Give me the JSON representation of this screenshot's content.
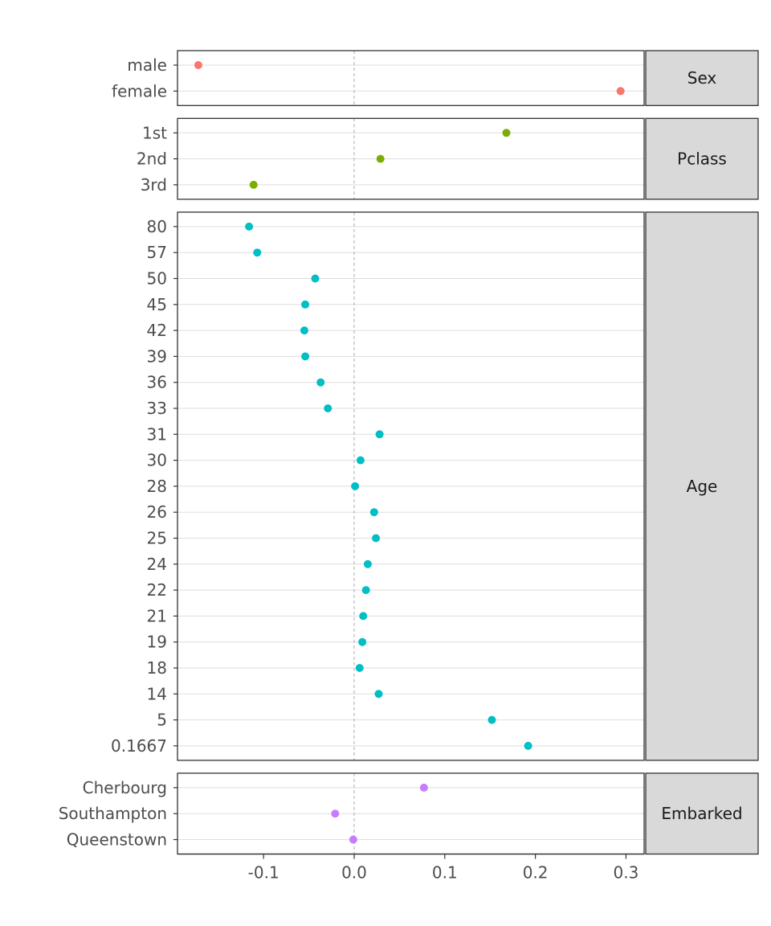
{
  "chart_data": {
    "type": "scatter",
    "title": "",
    "xlabel": "",
    "ylabel": "",
    "xlim": [
      -0.195,
      0.32
    ],
    "x_ticks": [
      {
        "value": -0.1,
        "label": "-0.1"
      },
      {
        "value": 0.0,
        "label": "0.0"
      },
      {
        "value": 0.1,
        "label": "0.1"
      },
      {
        "value": 0.2,
        "label": "0.2"
      },
      {
        "value": 0.3,
        "label": "0.3"
      }
    ],
    "reference_line": 0,
    "grid": true,
    "legend": "none",
    "facets": [
      {
        "label": "Sex",
        "color": "#F8766D",
        "points": [
          {
            "category": "male",
            "value": -0.172
          },
          {
            "category": "female",
            "value": 0.294
          }
        ]
      },
      {
        "label": "Pclass",
        "color": "#7CAE00",
        "points": [
          {
            "category": "1st",
            "value": 0.168
          },
          {
            "category": "2nd",
            "value": 0.029
          },
          {
            "category": "3rd",
            "value": -0.111
          }
        ]
      },
      {
        "label": "Age",
        "color": "#00BFC4",
        "points": [
          {
            "category": "80",
            "value": -0.116
          },
          {
            "category": "57",
            "value": -0.107
          },
          {
            "category": "50",
            "value": -0.043
          },
          {
            "category": "45",
            "value": -0.054
          },
          {
            "category": "42",
            "value": -0.055
          },
          {
            "category": "39",
            "value": -0.054
          },
          {
            "category": "36",
            "value": -0.037
          },
          {
            "category": "33",
            "value": -0.029
          },
          {
            "category": "31",
            "value": 0.028
          },
          {
            "category": "30",
            "value": 0.007
          },
          {
            "category": "28",
            "value": 0.001
          },
          {
            "category": "26",
            "value": 0.022
          },
          {
            "category": "25",
            "value": 0.024
          },
          {
            "category": "24",
            "value": 0.015
          },
          {
            "category": "22",
            "value": 0.013
          },
          {
            "category": "21",
            "value": 0.01
          },
          {
            "category": "19",
            "value": 0.009
          },
          {
            "category": "18",
            "value": 0.006
          },
          {
            "category": "14",
            "value": 0.027
          },
          {
            "category": "5",
            "value": 0.152
          },
          {
            "category": "0.1667",
            "value": 0.192
          }
        ]
      },
      {
        "label": "Embarked",
        "color": "#C77CFF",
        "points": [
          {
            "category": "Cherbourg",
            "value": 0.077
          },
          {
            "category": "Southampton",
            "value": -0.021
          },
          {
            "category": "Queenstown",
            "value": -0.001
          }
        ]
      }
    ]
  }
}
